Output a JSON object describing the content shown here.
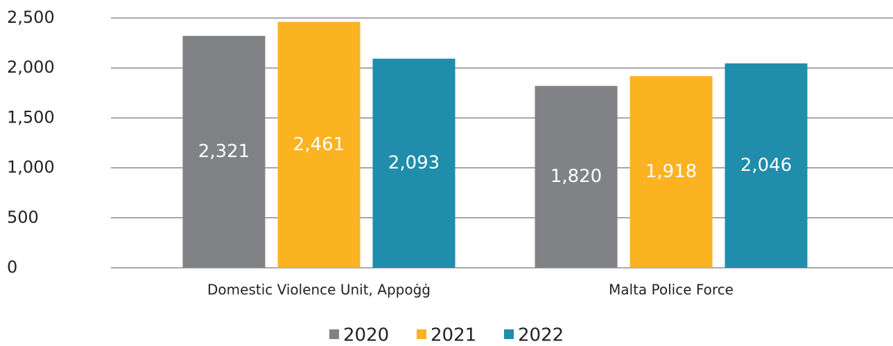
{
  "chart_data": {
    "type": "bar",
    "categories": [
      "Domestic Violence Unit, Appoġġ",
      "Malta Police Force"
    ],
    "series": [
      {
        "name": "2020",
        "color": "#808285",
        "values": [
          2321,
          1820
        ],
        "value_labels": [
          "2,321",
          "1,820"
        ]
      },
      {
        "name": "2021",
        "color": "#fbb322",
        "values": [
          2461,
          1918
        ],
        "value_labels": [
          "2,461",
          "1,918"
        ]
      },
      {
        "name": "2022",
        "color": "#1f8dab",
        "values": [
          2093,
          2046
        ],
        "value_labels": [
          "2,093",
          "2,046"
        ]
      }
    ],
    "ylim": [
      0,
      2500
    ],
    "yticks": [
      0,
      500,
      {
        "value": 1000,
        "label": "1,000"
      },
      {
        "value": 1500,
        "label": "1,500"
      },
      {
        "value": 2000,
        "label": "2,000"
      },
      {
        "value": 2500,
        "label": "2,500"
      }
    ],
    "grid": true,
    "legend": "bottom"
  }
}
